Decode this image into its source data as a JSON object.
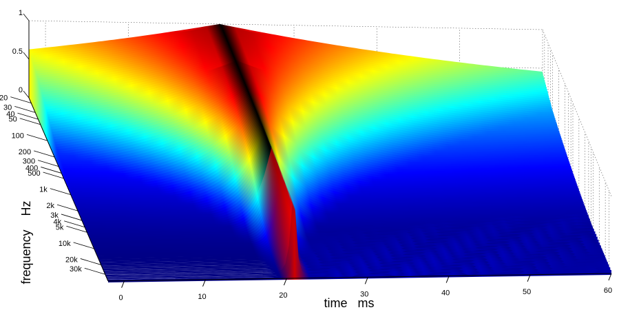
{
  "chart_data": {
    "type": "surface",
    "title": "",
    "xlabel": "time   ms",
    "ylabel": "frequency    Hz",
    "zlabel": "",
    "colormap": "jet",
    "grid": true,
    "x_ticks": [
      0,
      10,
      20,
      30,
      40,
      50,
      60
    ],
    "x_tick_labels": [
      "0",
      "10",
      "20",
      "30",
      "40",
      "50",
      "60"
    ],
    "xlim": [
      -2,
      60
    ],
    "y_ticks": [
      20,
      30,
      40,
      50,
      100,
      200,
      300,
      400,
      500,
      1000,
      2000,
      3000,
      4000,
      5000,
      10000,
      20000,
      30000
    ],
    "y_tick_labels": [
      "20",
      "30",
      "40",
      "50",
      "100",
      "200",
      "300",
      "400",
      "500",
      "1k",
      "2k",
      "3k",
      "4k",
      "5k",
      "10k",
      "20k",
      "30k"
    ],
    "ylim": [
      16,
      40000
    ],
    "yscale": "log",
    "z_ticks": [
      0,
      0.5,
      1
    ],
    "z_tick_labels": [
      "0",
      "0.5",
      "1"
    ],
    "zlim": [
      0,
      1
    ],
    "impulse_time_ms": 21,
    "peak_value": 1.0,
    "low_frequency_tail_level": 0.55,
    "colors": {
      "dark_blue": "#00008f",
      "blue": "#0000ff",
      "cyan": "#00ffff",
      "yellow": "#ffff00",
      "red": "#ff0000",
      "dark_red": "#800000",
      "black": "#000000",
      "grid": "#555555"
    }
  }
}
